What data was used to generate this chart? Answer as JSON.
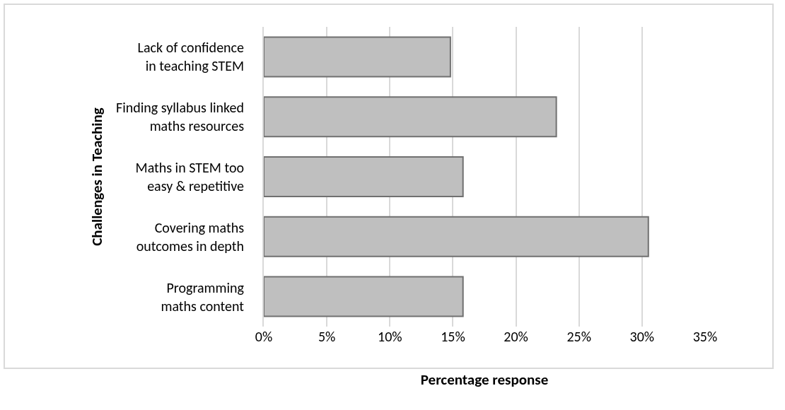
{
  "chart_data": {
    "type": "bar",
    "orientation": "horizontal",
    "xlabel": "Percentage response",
    "ylabel": "Challenges in Teaching",
    "categories": [
      "Lack of confidence\nin teaching STEM",
      "Finding syllabus linked\nmaths resources",
      "Maths in STEM too\neasy & repetitive",
      "Covering maths\noutcomes in depth",
      "Programming\nmaths content"
    ],
    "values": [
      14.8,
      23.2,
      15.8,
      30.5,
      15.8
    ],
    "color": "#bfbfbf",
    "xlim": [
      0,
      35
    ],
    "xticks": [
      {
        "value": 0,
        "label": "0%"
      },
      {
        "value": 5,
        "label": "5%"
      },
      {
        "value": 10,
        "label": "10%"
      },
      {
        "value": 15,
        "label": "15%"
      },
      {
        "value": 20,
        "label": "20%"
      },
      {
        "value": 25,
        "label": "25%"
      },
      {
        "value": 30,
        "label": "30%"
      },
      {
        "value": 35,
        "label": "35%"
      }
    ],
    "grid": "x",
    "legend": false
  }
}
